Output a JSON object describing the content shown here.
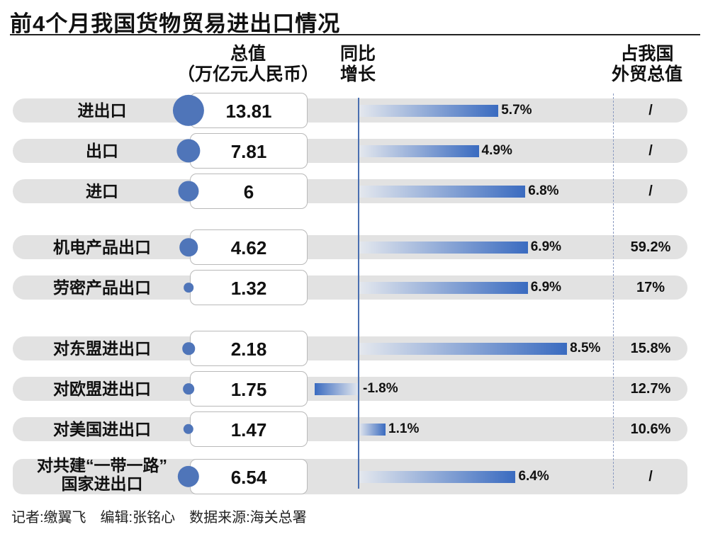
{
  "title": "前4个月我国货物贸易进出口情况",
  "headers": {
    "total": [
      "总值",
      "（万亿元人民币）"
    ],
    "growth": [
      "同比",
      "增长"
    ],
    "share": [
      "占我国",
      "外贸总值"
    ]
  },
  "footer": "记者:缴翼飞　编辑:张铭心　数据来源:海关总署",
  "colors": {
    "bubble": "#4f75b9",
    "bar": "#3a6bc0",
    "row_bg": "#e2e2e2"
  },
  "chart_data": {
    "type": "bar",
    "title": "前4个月我国货物贸易进出口情况",
    "columns": [
      "总值（万亿元人民币）",
      "同比增长",
      "占我国外贸总值"
    ],
    "rows": [
      {
        "label": "进出口",
        "total": "13.81",
        "growth": 5.7,
        "growth_label": "5.7%",
        "share": "/"
      },
      {
        "label": "出口",
        "total": "7.81",
        "growth": 4.9,
        "growth_label": "4.9%",
        "share": "/"
      },
      {
        "label": "进口",
        "total": "6",
        "growth": 6.8,
        "growth_label": "6.8%",
        "share": "/"
      },
      {
        "label": "机电产品出口",
        "total": "4.62",
        "growth": 6.9,
        "growth_label": "6.9%",
        "share": "59.2%"
      },
      {
        "label": "劳密产品出口",
        "total": "1.32",
        "growth": 6.9,
        "growth_label": "6.9%",
        "share": "17%"
      },
      {
        "label": "对东盟进出口",
        "total": "2.18",
        "growth": 8.5,
        "growth_label": "8.5%",
        "share": "15.8%"
      },
      {
        "label": "对欧盟进出口",
        "total": "1.75",
        "growth": -1.8,
        "growth_label": "-1.8%",
        "share": "12.7%"
      },
      {
        "label": "对美国进出口",
        "total": "1.47",
        "growth": 1.1,
        "growth_label": "1.1%",
        "share": "10.6%"
      },
      {
        "label": "对共建“一带一路”国家进出口",
        "label_lines": [
          "对共建“一带一路”",
          "国家进出口"
        ],
        "total": "6.54",
        "growth": 6.4,
        "growth_label": "6.4%",
        "share": "/"
      }
    ]
  }
}
